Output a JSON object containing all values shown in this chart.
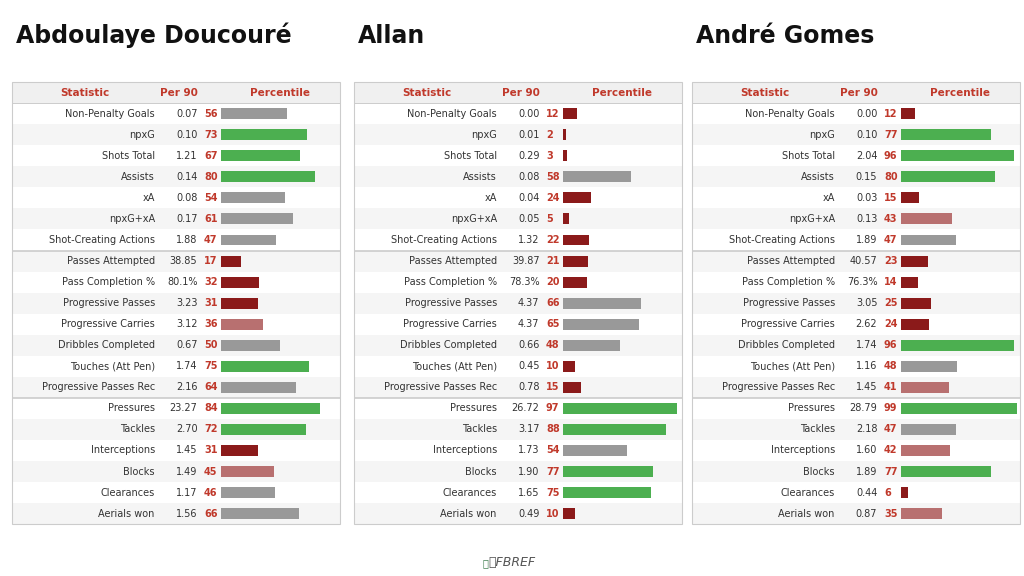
{
  "players": [
    {
      "name": "Abdoulaye Doucouré",
      "stats": [
        {
          "label": "Non-Penalty Goals",
          "per90": "0.07",
          "pct": 56
        },
        {
          "label": "npxG",
          "per90": "0.10",
          "pct": 73
        },
        {
          "label": "Shots Total",
          "per90": "1.21",
          "pct": 67
        },
        {
          "label": "Assists",
          "per90": "0.14",
          "pct": 80
        },
        {
          "label": "xA",
          "per90": "0.08",
          "pct": 54
        },
        {
          "label": "npxG+xA",
          "per90": "0.17",
          "pct": 61
        },
        {
          "label": "Shot-Creating Actions",
          "per90": "1.88",
          "pct": 47
        },
        {
          "label": "Passes Attempted",
          "per90": "38.85",
          "pct": 17
        },
        {
          "label": "Pass Completion %",
          "per90": "80.1%",
          "pct": 32
        },
        {
          "label": "Progressive Passes",
          "per90": "3.23",
          "pct": 31
        },
        {
          "label": "Progressive Carries",
          "per90": "3.12",
          "pct": 36
        },
        {
          "label": "Dribbles Completed",
          "per90": "0.67",
          "pct": 50
        },
        {
          "label": "Touches (Att Pen)",
          "per90": "1.74",
          "pct": 75
        },
        {
          "label": "Progressive Passes Rec",
          "per90": "2.16",
          "pct": 64
        },
        {
          "label": "Pressures",
          "per90": "23.27",
          "pct": 84
        },
        {
          "label": "Tackles",
          "per90": "2.70",
          "pct": 72
        },
        {
          "label": "Interceptions",
          "per90": "1.45",
          "pct": 31
        },
        {
          "label": "Blocks",
          "per90": "1.49",
          "pct": 45
        },
        {
          "label": "Clearances",
          "per90": "1.17",
          "pct": 46
        },
        {
          "label": "Aerials won",
          "per90": "1.56",
          "pct": 66
        }
      ],
      "section_breaks": [
        7,
        14
      ]
    },
    {
      "name": "Allan",
      "stats": [
        {
          "label": "Non-Penalty Goals",
          "per90": "0.00",
          "pct": 12
        },
        {
          "label": "npxG",
          "per90": "0.01",
          "pct": 2
        },
        {
          "label": "Shots Total",
          "per90": "0.29",
          "pct": 3
        },
        {
          "label": "Assists",
          "per90": "0.08",
          "pct": 58
        },
        {
          "label": "xA",
          "per90": "0.04",
          "pct": 24
        },
        {
          "label": "npxG+xA",
          "per90": "0.05",
          "pct": 5
        },
        {
          "label": "Shot-Creating Actions",
          "per90": "1.32",
          "pct": 22
        },
        {
          "label": "Passes Attempted",
          "per90": "39.87",
          "pct": 21
        },
        {
          "label": "Pass Completion %",
          "per90": "78.3%",
          "pct": 20
        },
        {
          "label": "Progressive Passes",
          "per90": "4.37",
          "pct": 66
        },
        {
          "label": "Progressive Carries",
          "per90": "4.37",
          "pct": 65
        },
        {
          "label": "Dribbles Completed",
          "per90": "0.66",
          "pct": 48
        },
        {
          "label": "Touches (Att Pen)",
          "per90": "0.45",
          "pct": 10
        },
        {
          "label": "Progressive Passes Rec",
          "per90": "0.78",
          "pct": 15
        },
        {
          "label": "Pressures",
          "per90": "26.72",
          "pct": 97
        },
        {
          "label": "Tackles",
          "per90": "3.17",
          "pct": 88
        },
        {
          "label": "Interceptions",
          "per90": "1.73",
          "pct": 54
        },
        {
          "label": "Blocks",
          "per90": "1.90",
          "pct": 77
        },
        {
          "label": "Clearances",
          "per90": "1.65",
          "pct": 75
        },
        {
          "label": "Aerials won",
          "per90": "0.49",
          "pct": 10
        }
      ],
      "section_breaks": [
        7,
        14
      ]
    },
    {
      "name": "André Gomes",
      "stats": [
        {
          "label": "Non-Penalty Goals",
          "per90": "0.00",
          "pct": 12
        },
        {
          "label": "npxG",
          "per90": "0.10",
          "pct": 77
        },
        {
          "label": "Shots Total",
          "per90": "2.04",
          "pct": 96
        },
        {
          "label": "Assists",
          "per90": "0.15",
          "pct": 80
        },
        {
          "label": "xA",
          "per90": "0.03",
          "pct": 15
        },
        {
          "label": "npxG+xA",
          "per90": "0.13",
          "pct": 43
        },
        {
          "label": "Shot-Creating Actions",
          "per90": "1.89",
          "pct": 47
        },
        {
          "label": "Passes Attempted",
          "per90": "40.57",
          "pct": 23
        },
        {
          "label": "Pass Completion %",
          "per90": "76.3%",
          "pct": 14
        },
        {
          "label": "Progressive Passes",
          "per90": "3.05",
          "pct": 25
        },
        {
          "label": "Progressive Carries",
          "per90": "2.62",
          "pct": 24
        },
        {
          "label": "Dribbles Completed",
          "per90": "1.74",
          "pct": 96
        },
        {
          "label": "Touches (Att Pen)",
          "per90": "1.16",
          "pct": 48
        },
        {
          "label": "Progressive Passes Rec",
          "per90": "1.45",
          "pct": 41
        },
        {
          "label": "Pressures",
          "per90": "28.79",
          "pct": 99
        },
        {
          "label": "Tackles",
          "per90": "2.18",
          "pct": 47
        },
        {
          "label": "Interceptions",
          "per90": "1.60",
          "pct": 42
        },
        {
          "label": "Blocks",
          "per90": "1.89",
          "pct": 77
        },
        {
          "label": "Clearances",
          "per90": "0.44",
          "pct": 6
        },
        {
          "label": "Aerials won",
          "per90": "0.87",
          "pct": 35
        }
      ],
      "section_breaks": [
        7,
        14
      ]
    }
  ],
  "bg_color": "#ffffff",
  "tab_bg": "#1e5e3e",
  "tab_text": "#ffffff",
  "col_header_bg": "#f0f0f0",
  "col_header_text_red": "#c0392b",
  "row_bg_white": "#ffffff",
  "row_bg_gray": "#f5f5f5",
  "section_line_color": "#cccccc",
  "bar_green": "#4caf50",
  "bar_red": "#8b1a1a",
  "bar_pink": "#b87070",
  "bar_gray": "#999999",
  "title_fontsize": 17,
  "table_fontsize": 7.0,
  "col_header_fontsize": 7.5,
  "tab_fontsize": 7.5,
  "fbref_color": "#555555"
}
